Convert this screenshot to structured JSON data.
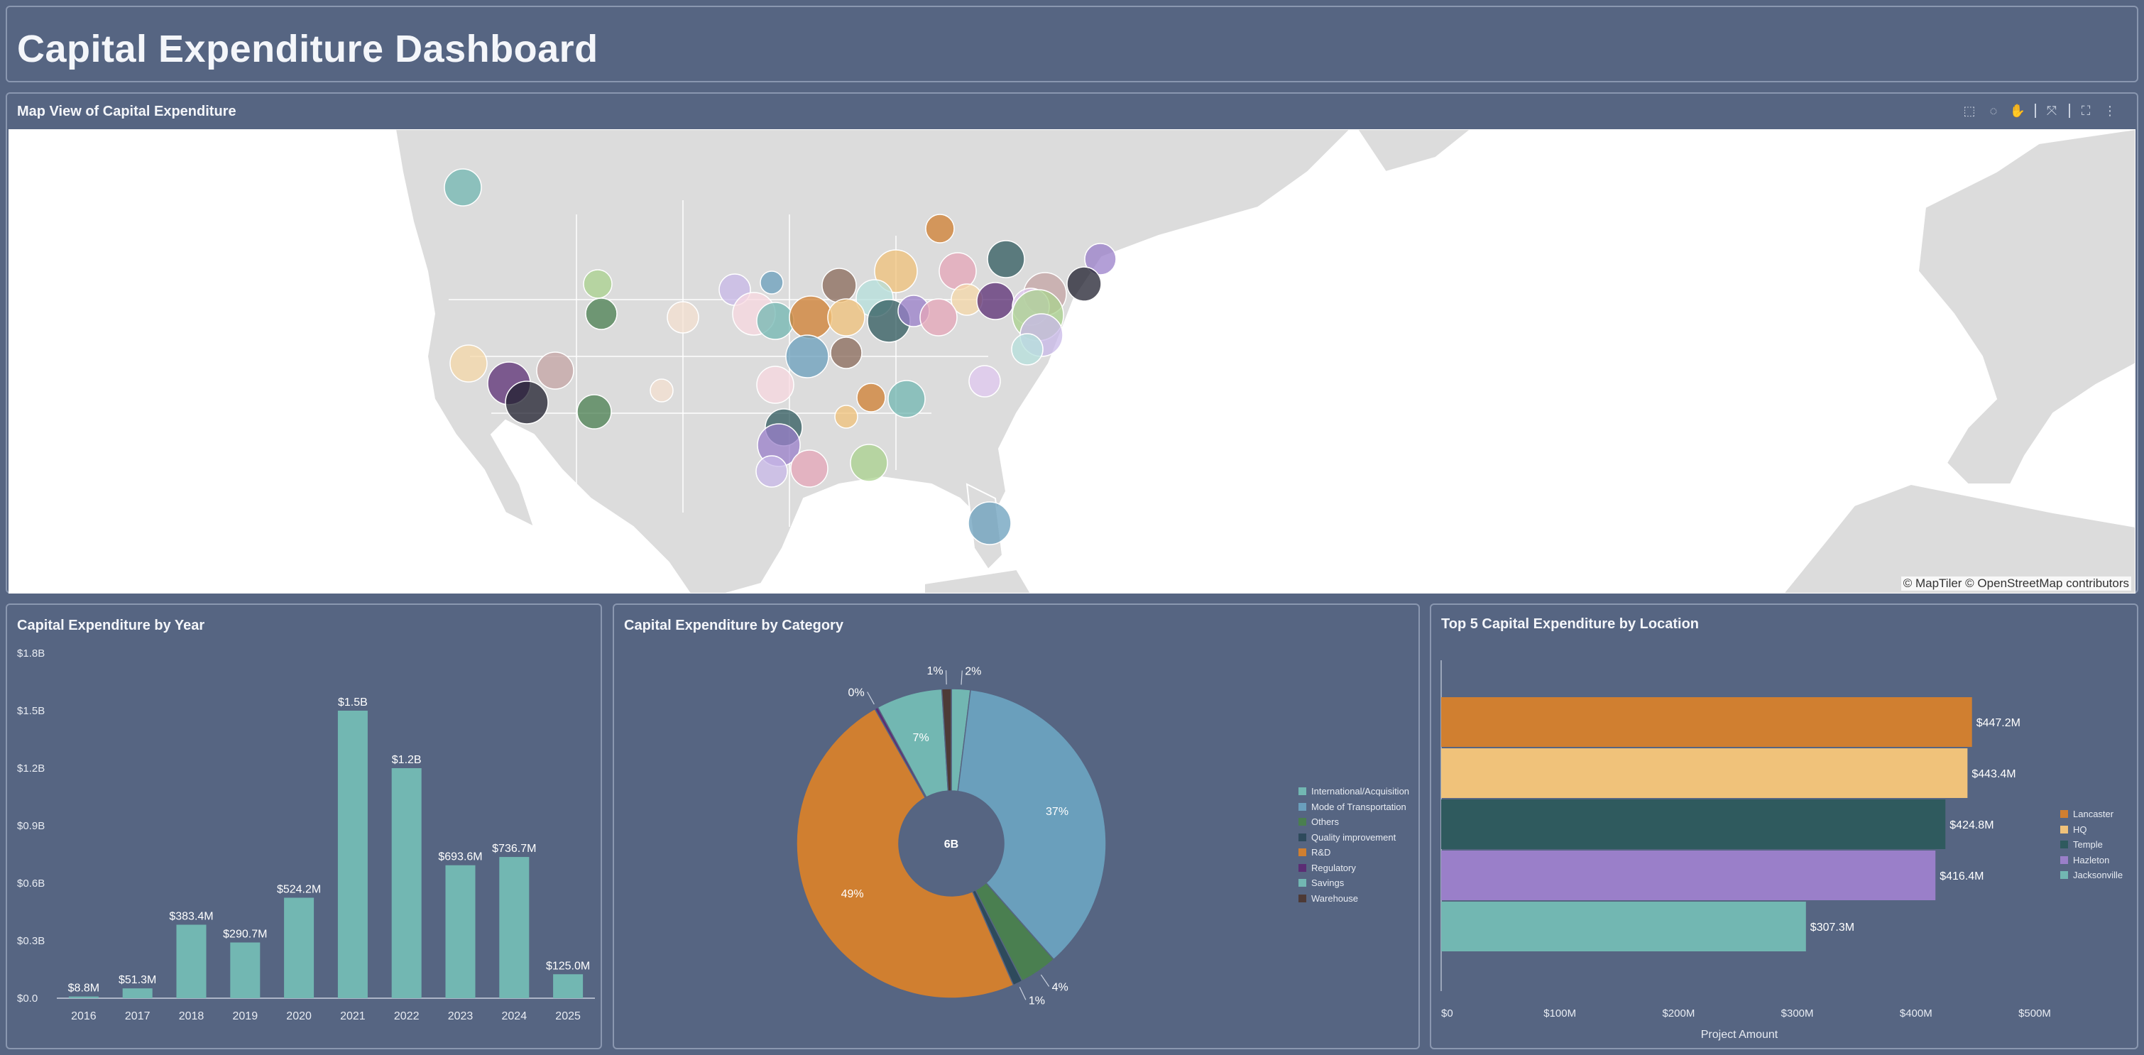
{
  "header": {
    "title": "Capital Expenditure Dashboard"
  },
  "map": {
    "title": "Map View of Capital Expenditure",
    "attribution": "© MapTiler © OpenStreetMap contributors",
    "toolbar": [
      "select-box-icon",
      "lasso-icon",
      "pan-hand-icon",
      "fit-extent-icon",
      "fullscreen-icon",
      "more-menu-icon"
    ]
  },
  "year": {
    "title": "Capital Expenditure by Year",
    "color": "#72b7b2",
    "chart_data": {
      "type": "bar",
      "categories": [
        "2016",
        "2017",
        "2018",
        "2019",
        "2020",
        "2021",
        "2022",
        "2023",
        "2024",
        "2025"
      ],
      "values": [
        8.8,
        51.3,
        383.4,
        290.7,
        524.2,
        1500,
        1200,
        693.6,
        736.7,
        125.0
      ],
      "value_unit": "$M",
      "data_labels": [
        "$8.8M",
        "$51.3M",
        "$383.4M",
        "$290.7M",
        "$524.2M",
        "$1.5B",
        "$1.2B",
        "$693.6M",
        "$736.7M",
        "$125.0M"
      ],
      "yticks": [
        "$0.0",
        "$0.3B",
        "$0.6B",
        "$0.9B",
        "$1.2B",
        "$1.5B",
        "$1.8B"
      ],
      "ylim": [
        0,
        1800
      ]
    }
  },
  "category": {
    "title": "Capital Expenditure by Category",
    "center_label": "6B",
    "chart_data": {
      "type": "pie",
      "labels": [
        "International/Acquisition",
        "Mode of Transportation",
        "Others",
        "Quality improvement",
        "R&D",
        "Regulatory",
        "Savings",
        "Warehouse"
      ],
      "values": [
        2,
        37,
        4,
        1,
        49,
        0,
        7,
        1
      ],
      "slice_labels": [
        "2%",
        "37%",
        "4%",
        "1%",
        "49%",
        "0%",
        "7%",
        "1%"
      ],
      "colors": [
        "#72b7b2",
        "#6a9fbc",
        "#4a7f50",
        "#2e4a5c",
        "#d07f30",
        "#5b2d74",
        "#72b7b2",
        "#4d3a36"
      ]
    }
  },
  "location": {
    "title": "Top 5 Capital Expenditure by Location",
    "chart_data": {
      "type": "bar",
      "orientation": "horizontal",
      "categories": [
        "Lancaster",
        "HQ",
        "Temple",
        "Hazleton",
        "Jacksonville"
      ],
      "values": [
        447.2,
        443.4,
        424.8,
        416.4,
        307.3
      ],
      "value_unit": "$M",
      "data_labels": [
        "$447.2M",
        "$443.4M",
        "$424.8M",
        "$416.4M",
        "$307.3M"
      ],
      "colors": [
        "#d07f30",
        "#f0c27a",
        "#2f5a5e",
        "#9a7fc9",
        "#72b7b2"
      ],
      "xticks": [
        "$0",
        "$100M",
        "$200M",
        "$300M",
        "$400M",
        "$500M"
      ],
      "xlim": [
        0,
        500
      ],
      "xlabel": "Project Amount"
    }
  }
}
